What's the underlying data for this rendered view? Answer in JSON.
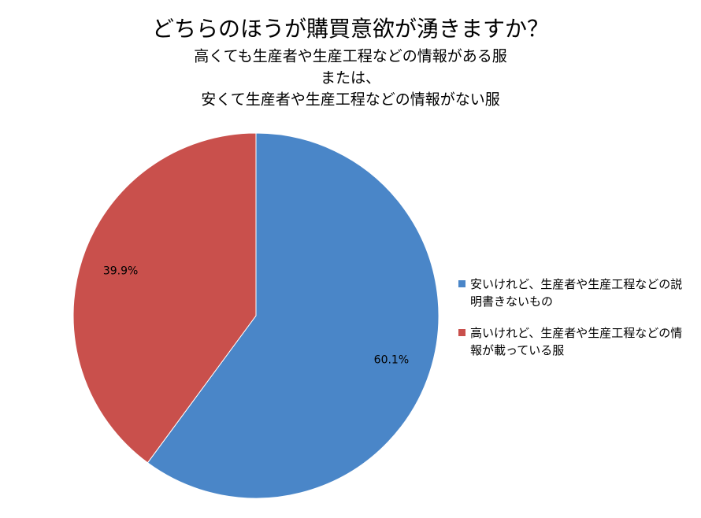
{
  "chart_data": {
    "type": "pie",
    "title": "どちらのほうが購買意欲が湧きますか？",
    "subtitle": [
      "高くても生産者や生産工程などの情報がある服",
      "または、",
      "安くて生産者や生産工程などの情報がない服"
    ],
    "categories": [
      "安いけれど、生産者や生産工程などの説明書きないもの",
      "高いけれど、生産者や生産工程などの情報が載っている服"
    ],
    "values": [
      60.1,
      39.9
    ],
    "value_labels": [
      "60.1%",
      "39.9%"
    ],
    "colors": [
      "#4a86c8",
      "#c9504c"
    ],
    "legend": "right"
  }
}
